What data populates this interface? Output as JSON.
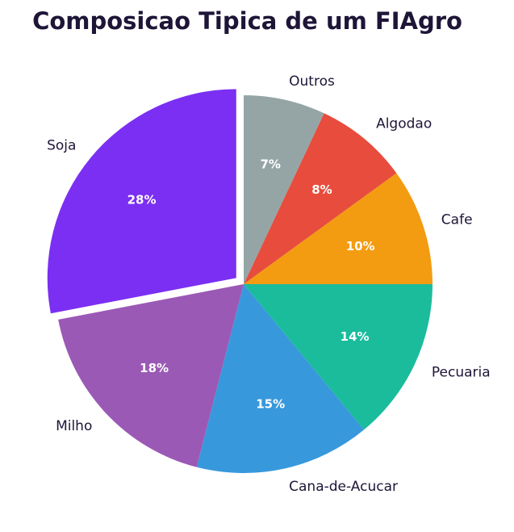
{
  "chart_data": {
    "type": "pie",
    "title": "Composicao Tipica de um FIAgro",
    "start_angle_deg": 90,
    "direction": "counterclockwise",
    "exploded": [
      "Soja"
    ],
    "slices": [
      {
        "label": "Soja",
        "value": 28,
        "pct_label": "28%",
        "color": "#7b2ff2"
      },
      {
        "label": "Milho",
        "value": 18,
        "pct_label": "18%",
        "color": "#9b59b6"
      },
      {
        "label": "Cana-de-Acucar",
        "value": 15,
        "pct_label": "15%",
        "color": "#3898dc"
      },
      {
        "label": "Pecuaria",
        "value": 14,
        "pct_label": "14%",
        "color": "#1abc9c"
      },
      {
        "label": "Cafe",
        "value": 10,
        "pct_label": "10%",
        "color": "#f39c12"
      },
      {
        "label": "Algodao",
        "value": 8,
        "pct_label": "8%",
        "color": "#e74c3c"
      },
      {
        "label": "Outros",
        "value": 7,
        "pct_label": "7%",
        "color": "#95a5a6"
      }
    ]
  }
}
